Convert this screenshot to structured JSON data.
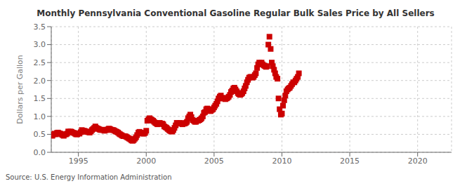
{
  "chart_data": {
    "type": "scatter",
    "title": "Monthly Pennsylvania Conventional Gasoline Regular Bulk Sales Price by All Sellers",
    "ylabel": "Dollars per Gallon",
    "annotation": "Source: U.S. Energy Information Administration",
    "color": "#cc0000",
    "marker": "square",
    "grid": true,
    "xlim": [
      1993.0,
      2022.5
    ],
    "xticks": [
      1995,
      2000,
      2005,
      2010,
      2015,
      2020
    ],
    "ylim": [
      0.0,
      3.5
    ],
    "yticks": [
      {
        "value": 0.0,
        "label": "0.0"
      },
      0.5,
      {
        "value": 1.0,
        "label": "1.0"
      },
      1.5,
      {
        "value": 2.0,
        "label": "2.0"
      },
      2.5,
      {
        "value": 3.0,
        "label": "3.0"
      },
      3.5
    ],
    "x": [
      1993.08,
      1993.17,
      1993.25,
      1993.33,
      1993.42,
      1993.5,
      1993.58,
      1993.67,
      1993.75,
      1993.83,
      1993.92,
      1994.0,
      1994.08,
      1994.17,
      1994.25,
      1994.33,
      1994.42,
      1994.5,
      1994.58,
      1994.67,
      1994.75,
      1994.83,
      1994.92,
      1995.0,
      1995.08,
      1995.17,
      1995.25,
      1995.33,
      1995.42,
      1995.5,
      1995.58,
      1995.67,
      1995.75,
      1995.83,
      1995.92,
      1996.0,
      1996.08,
      1996.17,
      1996.25,
      1996.33,
      1996.42,
      1996.5,
      1996.58,
      1996.67,
      1996.75,
      1996.83,
      1996.92,
      1997.0,
      1997.08,
      1997.17,
      1997.25,
      1997.33,
      1997.42,
      1997.5,
      1997.58,
      1997.67,
      1997.75,
      1997.83,
      1997.92,
      1998.0,
      1998.08,
      1998.17,
      1998.25,
      1998.33,
      1998.42,
      1998.5,
      1998.58,
      1998.67,
      1998.75,
      1998.83,
      1998.92,
      1999.0,
      1999.08,
      1999.17,
      1999.25,
      1999.33,
      1999.42,
      1999.5,
      1999.58,
      1999.67,
      1999.75,
      1999.83,
      1999.92,
      2000.0,
      2000.08,
      2000.17,
      2000.25,
      2000.33,
      2000.42,
      2000.5,
      2000.58,
      2000.67,
      2000.75,
      2000.83,
      2000.92,
      2001.0,
      2001.08,
      2001.17,
      2001.25,
      2001.33,
      2001.42,
      2001.5,
      2001.58,
      2001.67,
      2001.75,
      2001.83,
      2001.92,
      2002.0,
      2002.08,
      2002.17,
      2002.25,
      2002.33,
      2002.42,
      2002.5,
      2002.58,
      2002.67,
      2002.75,
      2002.83,
      2002.92,
      2003.0,
      2003.08,
      2003.17,
      2003.25,
      2003.33,
      2003.42,
      2003.5,
      2003.58,
      2003.67,
      2003.75,
      2003.83,
      2003.92,
      2004.0,
      2004.08,
      2004.17,
      2004.25,
      2004.33,
      2004.42,
      2004.5,
      2004.58,
      2004.67,
      2004.75,
      2004.83,
      2004.92,
      2005.0,
      2005.08,
      2005.17,
      2005.25,
      2005.33,
      2005.42,
      2005.5,
      2005.58,
      2005.67,
      2005.75,
      2005.83,
      2005.92,
      2006.0,
      2006.08,
      2006.17,
      2006.25,
      2006.33,
      2006.42,
      2006.5,
      2006.58,
      2006.67,
      2006.75,
      2006.83,
      2006.92,
      2007.0,
      2007.08,
      2007.17,
      2007.25,
      2007.33,
      2007.42,
      2007.5,
      2007.58,
      2007.67,
      2007.75,
      2007.83,
      2007.92,
      2008.0,
      2008.08,
      2008.17,
      2008.25,
      2008.33,
      2008.42,
      2008.5,
      2008.58,
      2008.67,
      2008.75,
      2008.83,
      2008.92,
      2009.0,
      2009.08,
      2009.17,
      2009.25,
      2009.33,
      2009.42,
      2009.5,
      2009.58,
      2009.67,
      2009.75,
      2009.83,
      2009.92,
      2010.0,
      2010.08,
      2010.17,
      2010.25,
      2010.33,
      2010.42,
      2010.5,
      2010.58,
      2010.67,
      2010.75,
      2010.83,
      2010.92,
      2011.0,
      2011.08,
      2011.17,
      2011.25
    ],
    "values": [
      0.46,
      0.5,
      0.52,
      0.5,
      0.54,
      0.55,
      0.53,
      0.52,
      0.5,
      0.48,
      0.46,
      0.5,
      0.5,
      0.52,
      0.58,
      0.57,
      0.58,
      0.57,
      0.55,
      0.54,
      0.52,
      0.5,
      0.5,
      0.53,
      0.52,
      0.56,
      0.62,
      0.6,
      0.6,
      0.59,
      0.57,
      0.57,
      0.56,
      0.55,
      0.58,
      0.62,
      0.65,
      0.68,
      0.72,
      0.68,
      0.66,
      0.65,
      0.63,
      0.62,
      0.63,
      0.62,
      0.6,
      0.62,
      0.62,
      0.64,
      0.66,
      0.65,
      0.63,
      0.62,
      0.62,
      0.6,
      0.58,
      0.57,
      0.55,
      0.52,
      0.5,
      0.48,
      0.46,
      0.45,
      0.45,
      0.44,
      0.42,
      0.4,
      0.38,
      0.36,
      0.33,
      0.32,
      0.34,
      0.38,
      0.42,
      0.48,
      0.55,
      0.57,
      0.55,
      0.53,
      0.52,
      0.52,
      0.54,
      0.6,
      0.88,
      0.92,
      0.95,
      0.92,
      0.9,
      0.88,
      0.85,
      0.82,
      0.8,
      0.78,
      0.8,
      0.82,
      0.8,
      0.8,
      0.78,
      0.72,
      0.7,
      0.68,
      0.65,
      0.62,
      0.6,
      0.58,
      0.58,
      0.62,
      0.68,
      0.75,
      0.82,
      0.8,
      0.8,
      0.82,
      0.8,
      0.78,
      0.8,
      0.8,
      0.82,
      0.85,
      0.95,
      1.0,
      1.05,
      0.98,
      0.9,
      0.88,
      0.85,
      0.85,
      0.88,
      0.88,
      0.9,
      0.92,
      0.95,
      1.0,
      1.1,
      1.12,
      1.2,
      1.22,
      1.2,
      1.15,
      1.15,
      1.18,
      1.2,
      1.25,
      1.3,
      1.35,
      1.42,
      1.5,
      1.55,
      1.58,
      1.52,
      1.5,
      1.5,
      1.48,
      1.5,
      1.52,
      1.55,
      1.6,
      1.68,
      1.72,
      1.78,
      1.8,
      1.75,
      1.7,
      1.65,
      1.62,
      1.6,
      1.62,
      1.65,
      1.7,
      1.78,
      1.85,
      1.95,
      2.02,
      2.08,
      2.1,
      2.1,
      2.08,
      2.1,
      2.15,
      2.2,
      2.35,
      2.45,
      2.5,
      2.48,
      2.5,
      2.45,
      2.42,
      2.4,
      2.38,
      2.4,
      3.0,
      3.22,
      2.88,
      2.5,
      2.4,
      2.3,
      2.2,
      2.1,
      2.05,
      1.5,
      1.2,
      1.05,
      1.08,
      1.3,
      1.45,
      1.58,
      1.7,
      1.75,
      1.78,
      1.8,
      1.85,
      1.9,
      1.95,
      1.95,
      2.0,
      2.05,
      2.1,
      2.2
    ]
  }
}
